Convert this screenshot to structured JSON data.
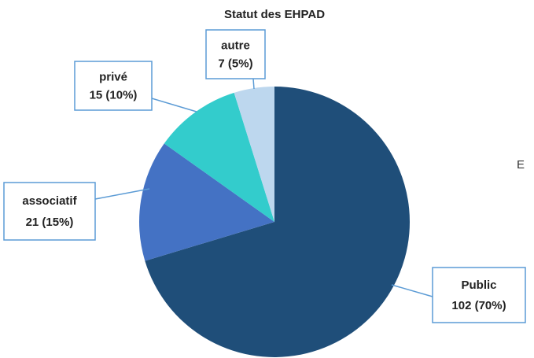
{
  "chart_data": {
    "type": "pie",
    "title": "Statut des EHPAD",
    "categories": [
      "Public",
      "associatif",
      "privé",
      "autre"
    ],
    "values": [
      102,
      21,
      15,
      7
    ],
    "value_labels": [
      "102 (70%)",
      "21 (15%)",
      "15 (10%)",
      "7 (5%)"
    ],
    "colors": [
      "#1f4e79",
      "#4472c4",
      "#33cccc",
      "#bdd7ee"
    ],
    "annotations": [
      "E"
    ]
  }
}
